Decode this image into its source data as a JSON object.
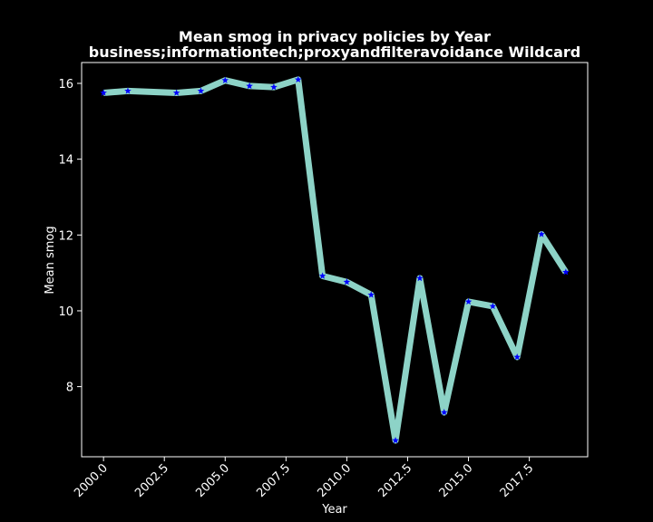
{
  "chart_data": {
    "type": "line",
    "title": "Mean smog in privacy policies by Year",
    "subtitle": "business;informationtech;proxyandfilteravoidance Wildcard",
    "xlabel": "Year",
    "ylabel": "Mean smog",
    "xlim": [
      1999.1,
      2019.9
    ],
    "ylim": [
      6.15,
      16.55
    ],
    "x_ticks": [
      2000.0,
      2002.5,
      2005.0,
      2007.5,
      2010.0,
      2012.5,
      2015.0,
      2017.5
    ],
    "x_tick_labels": [
      "2000.0",
      "2002.5",
      "2005.0",
      "2007.5",
      "2010.0",
      "2012.5",
      "2015.0",
      "2017.5"
    ],
    "y_ticks": [
      8,
      10,
      12,
      14,
      16
    ],
    "y_tick_labels": [
      "8",
      "10",
      "12",
      "14",
      "16"
    ],
    "grid": false,
    "series": [
      {
        "x": [
          2000,
          2001,
          2003,
          2004,
          2005,
          2006,
          2007,
          2008,
          2009,
          2010,
          2011,
          2012,
          2013,
          2014,
          2015,
          2016,
          2017,
          2018,
          2019
        ],
        "y": [
          15.75,
          15.8,
          15.75,
          15.8,
          16.08,
          15.93,
          15.9,
          16.1,
          10.92,
          10.76,
          10.42,
          6.58,
          10.86,
          7.32,
          10.24,
          10.12,
          8.78,
          12.02,
          11.02
        ],
        "line_color": "#8dd3c7",
        "marker": "star",
        "marker_color": "#0000ff"
      }
    ]
  }
}
